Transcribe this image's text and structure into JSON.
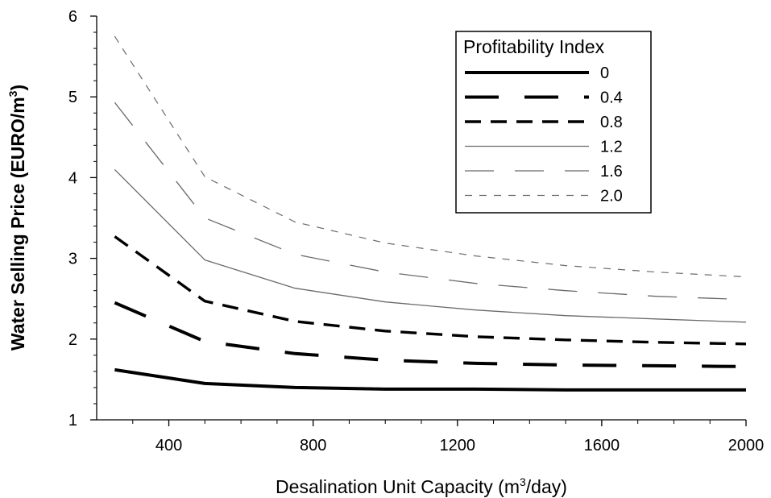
{
  "chart_data": {
    "type": "line",
    "xlabel_prefix": "Desalination Unit Capacity (m",
    "xlabel_sup": "3",
    "xlabel_suffix": "/day)",
    "ylabel_prefix": "Water Selling Price (EURO/m",
    "ylabel_sup": "3",
    "ylabel_suffix": ")",
    "xlim": [
      200,
      2000
    ],
    "ylim": [
      1,
      6
    ],
    "x_ticks": [
      400,
      800,
      1200,
      1600,
      2000
    ],
    "y_ticks": [
      1,
      2,
      3,
      4,
      5,
      6
    ],
    "x_tick_labels": [
      "400",
      "800",
      "1200",
      "1600",
      "2000"
    ],
    "y_tick_labels": [
      "1",
      "2",
      "3",
      "4",
      "5",
      "6"
    ],
    "legend": {
      "title": "Profitability Index",
      "position": "top-right"
    },
    "x": [
      250,
      500,
      750,
      1000,
      1250,
      1500,
      1750,
      2000
    ],
    "series": [
      {
        "name": "0",
        "values": [
          1.62,
          1.45,
          1.4,
          1.38,
          1.38,
          1.37,
          1.37,
          1.37
        ],
        "style": "solid-thick",
        "color": "#000000"
      },
      {
        "name": "0.4",
        "values": [
          2.45,
          1.97,
          1.82,
          1.74,
          1.7,
          1.68,
          1.67,
          1.66
        ],
        "style": "longdash-thick",
        "color": "#000000"
      },
      {
        "name": "0.8",
        "values": [
          3.27,
          2.47,
          2.22,
          2.1,
          2.03,
          1.99,
          1.96,
          1.94
        ],
        "style": "dash-thick",
        "color": "#000000"
      },
      {
        "name": "1.2",
        "values": [
          4.1,
          2.98,
          2.63,
          2.46,
          2.36,
          2.29,
          2.25,
          2.21
        ],
        "style": "solid-thin",
        "color": "#6a6a6a"
      },
      {
        "name": "1.6",
        "values": [
          4.93,
          3.5,
          3.05,
          2.83,
          2.69,
          2.6,
          2.53,
          2.49
        ],
        "style": "longdash-thin",
        "color": "#6a6a6a"
      },
      {
        "name": "2.0",
        "values": [
          5.75,
          4.01,
          3.45,
          3.19,
          3.03,
          2.91,
          2.83,
          2.77
        ],
        "style": "dash-thin",
        "color": "#6a6a6a"
      }
    ]
  }
}
